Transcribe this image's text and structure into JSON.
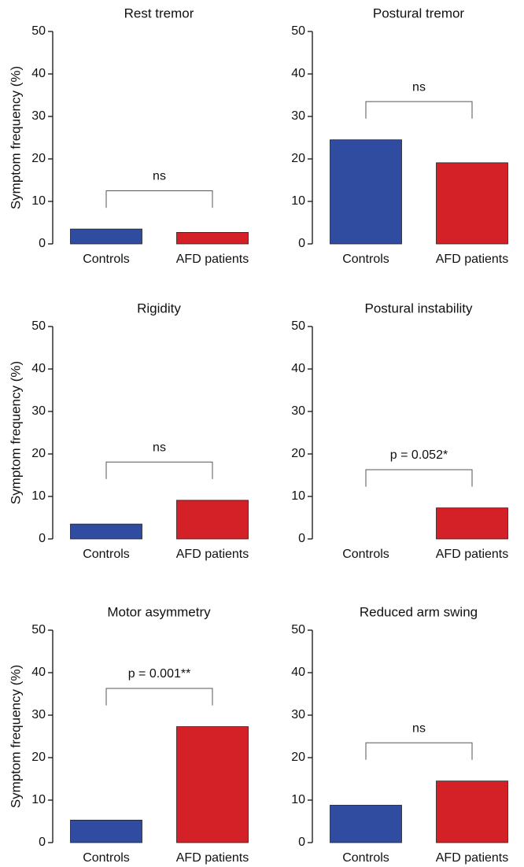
{
  "chart_data": [
    {
      "type": "bar",
      "title": "Rest tremor",
      "y_label": "Symptom frequency (%)",
      "categories": [
        "Controls",
        "AFD patients"
      ],
      "values": [
        3.5,
        2.7
      ],
      "colors": [
        "#2f4ca0",
        "#d42127"
      ],
      "ylim": [
        0,
        50
      ],
      "yticks": [
        0,
        10,
        20,
        30,
        40,
        50
      ],
      "annotation": "ns"
    },
    {
      "type": "bar",
      "title": "Postural tremor",
      "categories": [
        "Controls",
        "AFD patients"
      ],
      "values": [
        24.5,
        19.1
      ],
      "colors": [
        "#2f4ca0",
        "#d42127"
      ],
      "ylim": [
        0,
        50
      ],
      "yticks": [
        0,
        10,
        20,
        30,
        40,
        50
      ],
      "annotation": "ns"
    },
    {
      "type": "bar",
      "title": "Rigidity",
      "y_label": "Symptom frequency (%)",
      "categories": [
        "Controls",
        "AFD patients"
      ],
      "values": [
        3.5,
        9.1
      ],
      "colors": [
        "#2f4ca0",
        "#d42127"
      ],
      "ylim": [
        0,
        50
      ],
      "yticks": [
        0,
        10,
        20,
        30,
        40,
        50
      ],
      "annotation": "ns"
    },
    {
      "type": "bar",
      "title": "Postural instability",
      "categories": [
        "Controls",
        "AFD patients"
      ],
      "values": [
        0,
        7.3
      ],
      "colors": [
        "#2f4ca0",
        "#d42127"
      ],
      "ylim": [
        0,
        50
      ],
      "yticks": [
        0,
        10,
        20,
        30,
        40,
        50
      ],
      "annotation": "p = 0.052*"
    },
    {
      "type": "bar",
      "title": "Motor asymmetry",
      "y_label": "Symptom frequency (%)",
      "categories": [
        "Controls",
        "AFD patients"
      ],
      "values": [
        5.3,
        27.3
      ],
      "colors": [
        "#2f4ca0",
        "#d42127"
      ],
      "ylim": [
        0,
        50
      ],
      "yticks": [
        0,
        10,
        20,
        30,
        40,
        50
      ],
      "annotation": "p = 0.001**"
    },
    {
      "type": "bar",
      "title": "Reduced arm swing",
      "categories": [
        "Controls",
        "AFD patients"
      ],
      "values": [
        8.8,
        14.5
      ],
      "colors": [
        "#2f4ca0",
        "#d42127"
      ],
      "ylim": [
        0,
        50
      ],
      "yticks": [
        0,
        10,
        20,
        30,
        40,
        50
      ],
      "annotation": "ns"
    }
  ]
}
